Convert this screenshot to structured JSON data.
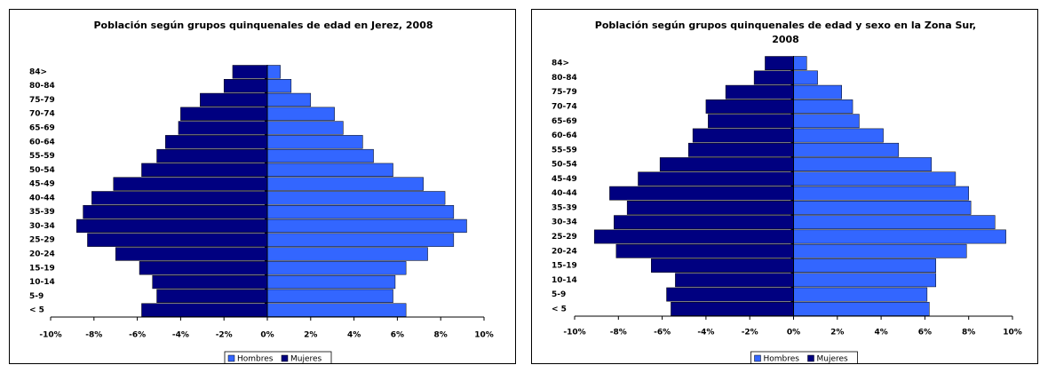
{
  "chart_data": [
    {
      "type": "bar",
      "orientation": "horizontal",
      "stacked": false,
      "title": "Población según grupos quinquenales de edad  en Jerez, 2008",
      "categories": [
        "< 5",
        "5-9",
        "10-14",
        "15-19",
        "20-24",
        "25-29",
        "30-34",
        "35-39",
        "40-44",
        "45-49",
        "50-54",
        "55-59",
        "60-64",
        "65-69",
        "70-74",
        "75-79",
        "80-84",
        "84>"
      ],
      "series": [
        {
          "name": "Hombres",
          "color": "#3366FF",
          "values": [
            6.4,
            5.8,
            5.9,
            6.4,
            7.4,
            8.6,
            9.2,
            8.6,
            8.2,
            7.2,
            5.8,
            4.9,
            4.4,
            3.5,
            3.1,
            2.0,
            1.1,
            0.6
          ]
        },
        {
          "name": "Mujeres",
          "color": "#000080",
          "values": [
            -5.8,
            -5.1,
            -5.3,
            -5.9,
            -7.0,
            -8.3,
            -8.8,
            -8.5,
            -8.1,
            -7.1,
            -5.8,
            -5.1,
            -4.7,
            -4.1,
            -4.0,
            -3.1,
            -2.0,
            -1.6
          ]
        }
      ],
      "xlim": [
        -10,
        10
      ],
      "xticks": [
        {
          "value": -10,
          "label": "-10%"
        },
        {
          "value": -8,
          "label": "-8%"
        },
        {
          "value": -6,
          "label": "-6%"
        },
        {
          "value": -4,
          "label": "-4%"
        },
        {
          "value": -2,
          "label": "-2%"
        },
        {
          "value": 0,
          "label": "0%"
        },
        {
          "value": 2,
          "label": "2%"
        },
        {
          "value": 4,
          "label": "4%"
        },
        {
          "value": 6,
          "label": "6%"
        },
        {
          "value": 8,
          "label": "8%"
        },
        {
          "value": 10,
          "label": "10%"
        }
      ],
      "grid": false,
      "legend": "bottom"
    },
    {
      "type": "bar",
      "orientation": "horizontal",
      "stacked": false,
      "title": "Población según grupos quinquenales de edad y sexo en la Zona Sur, 2008",
      "categories": [
        "< 5",
        "5-9",
        "10-14",
        "15-19",
        "20-24",
        "25-29",
        "30-34",
        "35-39",
        "40-44",
        "45-49",
        "50-54",
        "55-59",
        "60-64",
        "65-69",
        "70-74",
        "75-79",
        "80-84",
        "84>"
      ],
      "series": [
        {
          "name": "Hombres",
          "color": "#3366FF",
          "values": [
            6.2,
            6.1,
            6.5,
            6.5,
            7.9,
            9.7,
            9.2,
            8.1,
            8.0,
            7.4,
            6.3,
            4.8,
            4.1,
            3.0,
            2.7,
            2.2,
            1.1,
            0.6
          ]
        },
        {
          "name": "Mujeres",
          "color": "#000080",
          "values": [
            -5.6,
            -5.8,
            -5.4,
            -6.5,
            -8.1,
            -9.1,
            -8.2,
            -7.6,
            -8.4,
            -7.1,
            -6.1,
            -4.8,
            -4.6,
            -3.9,
            -4.0,
            -3.1,
            -1.8,
            -1.3
          ]
        }
      ],
      "xlim": [
        -10,
        10
      ],
      "xticks": [
        {
          "value": -10,
          "label": "-10%"
        },
        {
          "value": -8,
          "label": "-8%"
        },
        {
          "value": -6,
          "label": "-6%"
        },
        {
          "value": -4,
          "label": "-4%"
        },
        {
          "value": -2,
          "label": "-2%"
        },
        {
          "value": 0,
          "label": "0%"
        },
        {
          "value": 2,
          "label": "2%"
        },
        {
          "value": 4,
          "label": "4%"
        },
        {
          "value": 6,
          "label": "6%"
        },
        {
          "value": 8,
          "label": "8%"
        },
        {
          "value": 10,
          "label": "10%"
        }
      ],
      "grid": false,
      "legend": "bottom"
    }
  ]
}
